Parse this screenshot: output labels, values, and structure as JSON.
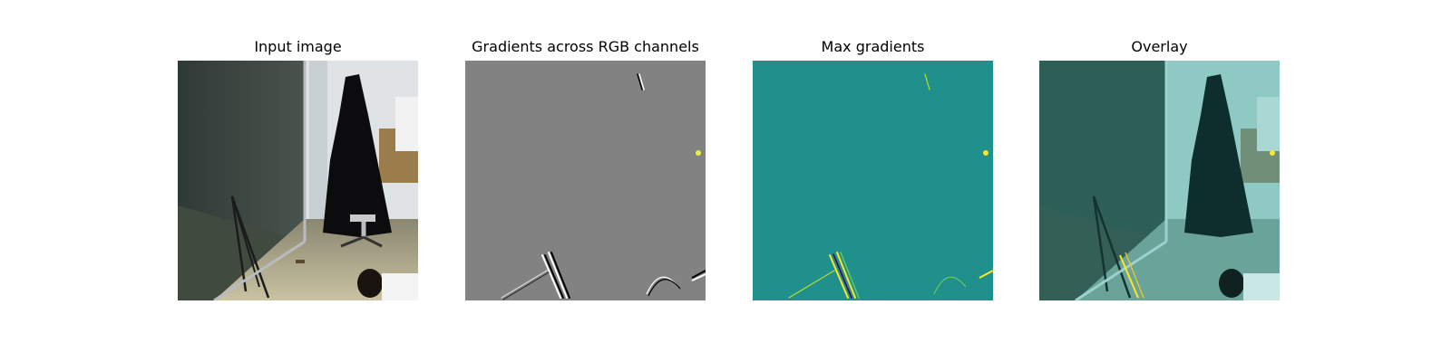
{
  "panels": [
    {
      "title": "Input image",
      "kind": "photo"
    },
    {
      "title": "Gradients across RGB channels",
      "kind": "gradients"
    },
    {
      "title": "Max gradients",
      "kind": "max-gradients"
    },
    {
      "title": "Overlay",
      "kind": "overlay"
    }
  ],
  "colors": {
    "background": "#ffffff",
    "gradient_gray": "#828282",
    "viridis_mid": "#20908c",
    "viridis_high": "#fde725",
    "viridis_low": "#440154",
    "overlay_tint": "#4fb3aa"
  }
}
